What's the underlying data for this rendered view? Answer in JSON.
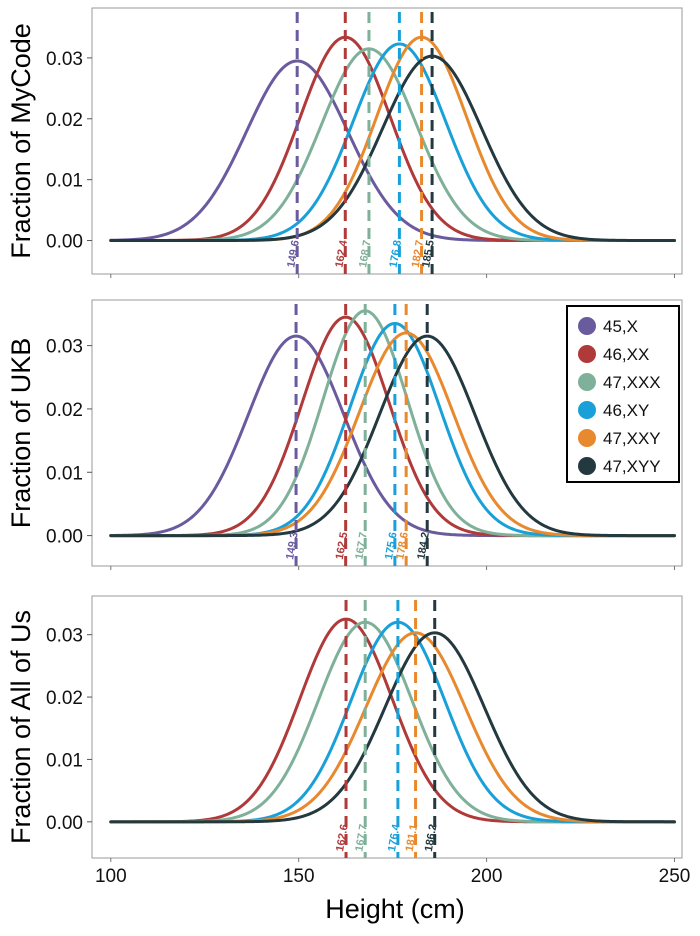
{
  "chart_data": {
    "type": "line",
    "xlabel": "Height (cm)",
    "xlim": [
      95,
      252
    ],
    "x_ticks": [
      "100",
      "150",
      "200",
      "250"
    ],
    "y_ticks": [
      "0.00",
      "0.01",
      "0.02",
      "0.03"
    ],
    "legend_position": "right of middle panel, top",
    "series_info": [
      {
        "name": "45,X",
        "color": "#6a5a9e"
      },
      {
        "name": "46,XX",
        "color": "#b03a3a"
      },
      {
        "name": "47,XXX",
        "color": "#7fb09a"
      },
      {
        "name": "46,XY",
        "color": "#1aa0d8"
      },
      {
        "name": "47,XXY",
        "color": "#e8892e"
      },
      {
        "name": "47,XYY",
        "color": "#23393f"
      }
    ],
    "panels": [
      {
        "ylabel": "Fraction of MyCode",
        "ylim": [
          -0.0055,
          0.0382
        ],
        "curves": [
          {
            "series": "45,X",
            "mean": 149.6,
            "peak": 0.0295,
            "sd": 13.5
          },
          {
            "series": "46,XX",
            "mean": 162.4,
            "peak": 0.0334,
            "sd": 12.0
          },
          {
            "series": "47,XXX",
            "mean": 168.7,
            "peak": 0.0315,
            "sd": 12.6
          },
          {
            "series": "46,XY",
            "mean": 176.8,
            "peak": 0.0323,
            "sd": 12.3
          },
          {
            "series": "47,XXY",
            "mean": 182.7,
            "peak": 0.0334,
            "sd": 12.0
          },
          {
            "series": "47,XYY",
            "mean": 185.5,
            "peak": 0.0303,
            "sd": 13.2
          }
        ],
        "mean_labels": [
          "149.6",
          "162.4",
          "168.7",
          "176.8",
          "182.7",
          "185.5"
        ]
      },
      {
        "ylabel": "Fraction of UKB",
        "ylim": [
          -0.0048,
          0.0372
        ],
        "curves": [
          {
            "series": "45,X",
            "mean": 149.3,
            "peak": 0.0315,
            "sd": 12.7
          },
          {
            "series": "46,XX",
            "mean": 162.5,
            "peak": 0.0345,
            "sd": 11.6
          },
          {
            "series": "47,XXX",
            "mean": 167.7,
            "peak": 0.0355,
            "sd": 11.2
          },
          {
            "series": "46,XY",
            "mean": 175.6,
            "peak": 0.0335,
            "sd": 11.9
          },
          {
            "series": "47,XXY",
            "mean": 178.6,
            "peak": 0.032,
            "sd": 12.5
          },
          {
            "series": "47,XYY",
            "mean": 184.2,
            "peak": 0.0315,
            "sd": 12.7
          }
        ],
        "mean_labels": [
          "149.3",
          "162.5",
          "167.7",
          "175.6",
          "178.6",
          "184.2"
        ]
      },
      {
        "ylabel": "Fraction of All of Us",
        "ylim": [
          -0.0058,
          0.0362
        ],
        "curves": [
          {
            "series": "46,XX",
            "mean": 162.6,
            "peak": 0.0325,
            "sd": 12.3
          },
          {
            "series": "47,XXX",
            "mean": 167.7,
            "peak": 0.032,
            "sd": 12.5
          },
          {
            "series": "46,XY",
            "mean": 176.4,
            "peak": 0.032,
            "sd": 12.5
          },
          {
            "series": "47,XXY",
            "mean": 181.1,
            "peak": 0.0303,
            "sd": 13.2
          },
          {
            "series": "47,XYY",
            "mean": 186.2,
            "peak": 0.0303,
            "sd": 13.2
          }
        ],
        "mean_labels": [
          "162.6",
          "167.7",
          "176.4",
          "181.1",
          "186.2"
        ]
      }
    ]
  }
}
